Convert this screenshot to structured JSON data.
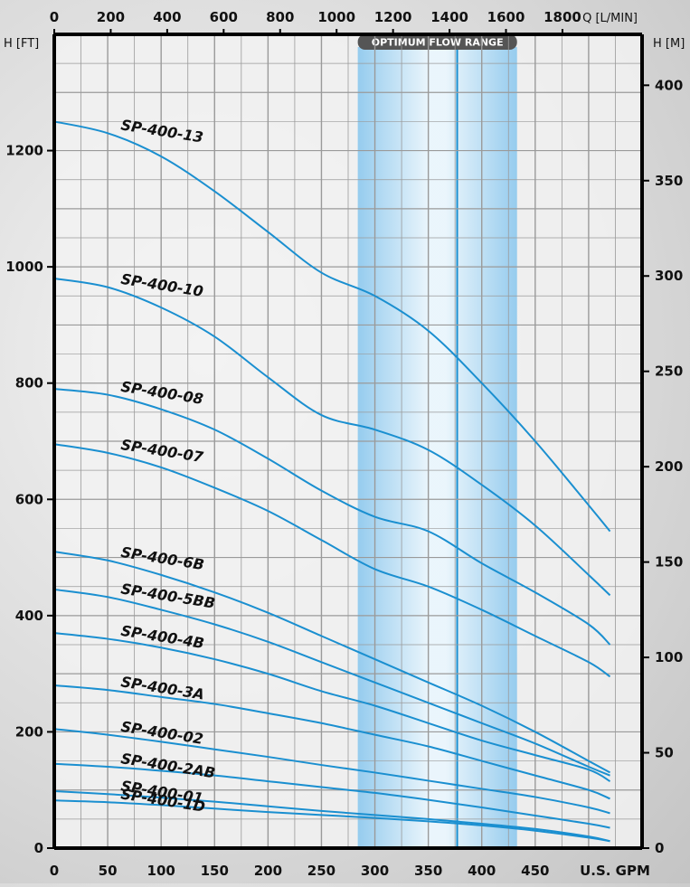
{
  "chart_data": {
    "type": "line",
    "title": "",
    "xlabel": "U.S. GPM",
    "x2label": "Q [L/MIN]",
    "ylabel": "H [FT]",
    "y2label": "H [M]",
    "xlim": [
      0,
      550
    ],
    "ylim": [
      0,
      1400
    ],
    "x2lim": [
      0,
      2082
    ],
    "y2lim": [
      0,
      426.7
    ],
    "grid": true,
    "legend": "curve labels",
    "x_ticks": [
      0,
      50,
      100,
      150,
      200,
      250,
      300,
      350,
      400,
      450
    ],
    "x_tick_labels": [
      "0",
      "50",
      "100",
      "150",
      "200",
      "250",
      "300",
      "350",
      "400",
      "450"
    ],
    "x2_ticks": [
      0,
      200,
      400,
      600,
      800,
      1000,
      1200,
      1400,
      1600,
      1800
    ],
    "x2_tick_labels": [
      "0",
      "200",
      "400",
      "600",
      "800",
      "1000",
      "1200",
      "1400",
      "1600",
      "1800"
    ],
    "y_ticks": [
      0,
      200,
      400,
      600,
      800,
      1000,
      1200
    ],
    "y_tick_labels": [
      "0",
      "200",
      "400",
      "600",
      "800",
      "1000",
      "1200"
    ],
    "y2_ticks": [
      0,
      50,
      100,
      150,
      200,
      250,
      300,
      350,
      400
    ],
    "y2_tick_labels": [
      "0",
      "50",
      "100",
      "150",
      "200",
      "250",
      "300",
      "350",
      "400"
    ],
    "optimum_range": {
      "label": "OPTIMUM FLOW RANGE",
      "from": 284,
      "to": 433,
      "center": 377
    },
    "series": [
      {
        "name": "SP-400-13",
        "x": [
          0,
          50,
          100,
          150,
          200,
          250,
          300,
          350,
          400,
          450,
          500,
          520
        ],
        "y": [
          1250,
          1230,
          1190,
          1130,
          1060,
          990,
          950,
          890,
          800,
          700,
          590,
          545
        ]
      },
      {
        "name": "SP-400-10",
        "x": [
          0,
          50,
          100,
          150,
          200,
          250,
          300,
          350,
          400,
          450,
          500,
          520
        ],
        "y": [
          980,
          965,
          930,
          880,
          810,
          745,
          720,
          685,
          625,
          555,
          470,
          435
        ]
      },
      {
        "name": "SP-400-08",
        "x": [
          0,
          50,
          100,
          150,
          200,
          250,
          300,
          350,
          400,
          450,
          500,
          520
        ],
        "y": [
          790,
          780,
          755,
          720,
          670,
          615,
          570,
          545,
          490,
          440,
          385,
          350
        ]
      },
      {
        "name": "SP-400-07",
        "x": [
          0,
          50,
          100,
          150,
          200,
          250,
          300,
          350,
          400,
          450,
          500,
          520
        ],
        "y": [
          695,
          680,
          655,
          620,
          580,
          530,
          480,
          450,
          410,
          365,
          320,
          295
        ]
      },
      {
        "name": "SP-400-6B",
        "x": [
          0,
          50,
          100,
          150,
          200,
          250,
          300,
          350,
          400,
          450,
          500,
          520
        ],
        "y": [
          510,
          495,
          470,
          440,
          405,
          365,
          325,
          285,
          245,
          200,
          150,
          130
        ]
      },
      {
        "name": "SP-400-5BB",
        "x": [
          0,
          50,
          100,
          150,
          200,
          250,
          300,
          350,
          400,
          450,
          500,
          520
        ],
        "y": [
          445,
          432,
          410,
          385,
          355,
          320,
          285,
          250,
          215,
          180,
          140,
          125
        ]
      },
      {
        "name": "SP-400-4B",
        "x": [
          0,
          50,
          100,
          150,
          200,
          250,
          300,
          350,
          400,
          450,
          500,
          520
        ],
        "y": [
          370,
          360,
          345,
          325,
          300,
          270,
          245,
          215,
          185,
          160,
          135,
          115
        ]
      },
      {
        "name": "SP-400-3A",
        "x": [
          0,
          50,
          100,
          150,
          200,
          250,
          300,
          350,
          400,
          450,
          500,
          520
        ],
        "y": [
          280,
          272,
          260,
          248,
          232,
          215,
          195,
          175,
          150,
          125,
          100,
          85
        ]
      },
      {
        "name": "SP-400-02",
        "x": [
          0,
          50,
          100,
          150,
          200,
          250,
          300,
          350,
          400,
          450,
          500,
          520
        ],
        "y": [
          205,
          195,
          183,
          170,
          157,
          143,
          130,
          116,
          102,
          88,
          70,
          60
        ]
      },
      {
        "name": "SP-400-2AB",
        "x": [
          0,
          50,
          100,
          150,
          200,
          250,
          300,
          350,
          400,
          450,
          500,
          520
        ],
        "y": [
          145,
          140,
          133,
          125,
          115,
          105,
          95,
          83,
          70,
          56,
          42,
          35
        ]
      },
      {
        "name": "SP-400-01",
        "x": [
          0,
          50,
          100,
          150,
          200,
          250,
          300,
          350,
          400,
          450,
          500,
          520
        ],
        "y": [
          98,
          93,
          87,
          80,
          72,
          64,
          57,
          50,
          42,
          33,
          20,
          12
        ]
      },
      {
        "name": "SP-400-1D",
        "x": [
          0,
          50,
          100,
          150,
          200,
          250,
          300,
          350,
          400,
          450,
          500,
          520
        ],
        "y": [
          82,
          79,
          74,
          68,
          62,
          57,
          52,
          46,
          39,
          30,
          18,
          12
        ]
      }
    ],
    "line_color": "#1a8fd0",
    "band_color": "#7cc2ee"
  }
}
